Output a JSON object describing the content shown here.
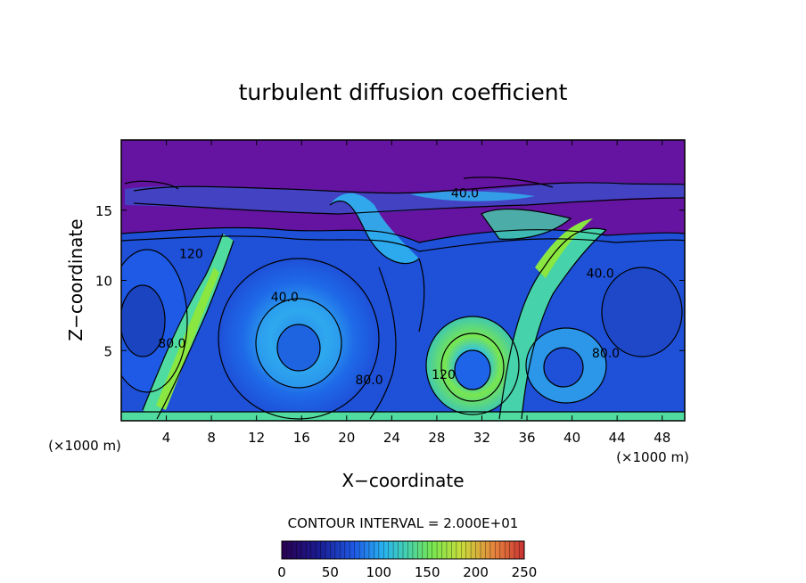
{
  "chart_data": {
    "type": "heatmap",
    "title": "turbulent diffusion coefficient",
    "xlabel": "X−coordinate",
    "ylabel": "Z−coordinate",
    "x_unit": "(×1000 m)",
    "x_unit_right": "(×1000 m)",
    "xlim": [
      0,
      50
    ],
    "ylim": [
      0,
      20
    ],
    "xticks": [
      4,
      8,
      12,
      16,
      20,
      24,
      28,
      32,
      36,
      40,
      44,
      48
    ],
    "yticks": [
      5,
      10,
      15
    ],
    "contour_interval_text": "CONTOUR INTERVAL = 2.000E+01",
    "contour_labels": [
      {
        "text": "40.0",
        "x": 14.5,
        "z": 8.5
      },
      {
        "text": "40.0",
        "x": 42.5,
        "z": 10.2
      },
      {
        "text": "40.0",
        "x": 30.5,
        "z": 15.9
      },
      {
        "text": "80.0",
        "x": 22.0,
        "z": 2.6
      },
      {
        "text": "80.0",
        "x": 43.0,
        "z": 4.5
      },
      {
        "text": "80.0",
        "x": 4.5,
        "z": 5.2
      },
      {
        "text": "120",
        "x": 28.6,
        "z": 3.0
      },
      {
        "text": "120",
        "x": 6.2,
        "z": 11.6
      }
    ],
    "colorbar": {
      "ticks": [
        0,
        50,
        100,
        150,
        200,
        250
      ],
      "min": 0,
      "max": 250,
      "colors": [
        "#2a0050",
        "#1a1a80",
        "#1e5ae6",
        "#28b4f0",
        "#46d2aa",
        "#78e650",
        "#c8dc3c",
        "#e6823c",
        "#c83232"
      ]
    },
    "background_value_top": 0,
    "field_colors": {
      "low": "#6414a0",
      "mid_low": "#2060e0",
      "mid": "#2fa8ee",
      "high": "#50dca0",
      "peak": "#8ae640"
    }
  }
}
